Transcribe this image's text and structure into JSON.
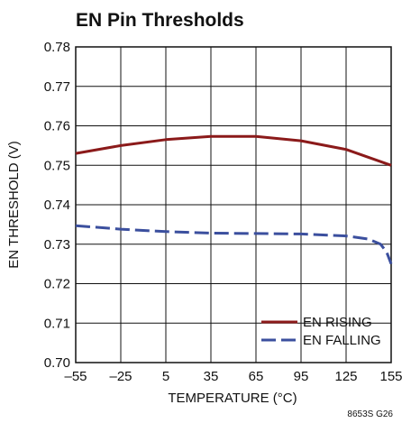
{
  "chart_data": {
    "type": "line",
    "title": "EN Pin Thresholds",
    "xlabel": "TEMPERATURE (°C)",
    "ylabel": "EN THRESHOLD (V)",
    "xlim": [
      -55,
      155
    ],
    "ylim": [
      0.7,
      0.78
    ],
    "x_ticks": [
      -55,
      -25,
      5,
      35,
      65,
      95,
      125,
      155
    ],
    "x_tick_labels": [
      "–55",
      "–25",
      "5",
      "35",
      "65",
      "95",
      "125",
      "155"
    ],
    "y_ticks": [
      0.7,
      0.71,
      0.72,
      0.73,
      0.74,
      0.75,
      0.76,
      0.77,
      0.78
    ],
    "y_tick_labels": [
      "0.70",
      "0.71",
      "0.72",
      "0.73",
      "0.74",
      "0.75",
      "0.76",
      "0.77",
      "0.78"
    ],
    "grid": true,
    "legend_position": "bottom-right",
    "series": [
      {
        "name": "EN RISING",
        "color": "#8b1a1a",
        "style": "solid",
        "x": [
          -55,
          -25,
          5,
          35,
          65,
          95,
          125,
          155
        ],
        "y": [
          0.753,
          0.755,
          0.7565,
          0.7573,
          0.7573,
          0.7562,
          0.754,
          0.75
        ]
      },
      {
        "name": "EN FALLING",
        "color": "#3b4f9e",
        "style": "dashed",
        "x": [
          -55,
          -25,
          5,
          35,
          65,
          95,
          125,
          140,
          148,
          152,
          155
        ],
        "y": [
          0.7347,
          0.7338,
          0.7332,
          0.7328,
          0.7327,
          0.7326,
          0.7321,
          0.7313,
          0.73,
          0.728,
          0.725
        ]
      }
    ]
  },
  "figure_code": "8653S G26"
}
